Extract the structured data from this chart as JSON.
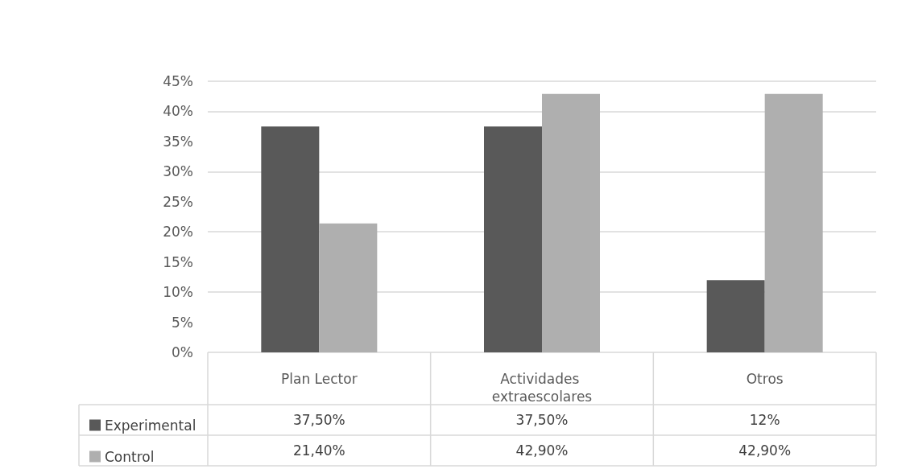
{
  "chart_data": {
    "type": "bar",
    "categories": [
      "Plan Lector",
      "Actividades extraescolares",
      "Otros"
    ],
    "series": [
      {
        "name": "Experimental",
        "color": "#595959",
        "values": [
          37.5,
          37.5,
          12
        ],
        "value_labels": [
          "37,50%",
          "37,50%",
          "12%"
        ]
      },
      {
        "name": "Control",
        "color": "#afafaf",
        "values": [
          21.4,
          42.9,
          42.9
        ],
        "value_labels": [
          "21,40%",
          "42,90%",
          "42,90%"
        ]
      }
    ],
    "ylim": [
      0,
      45
    ],
    "yticks": [
      {
        "value": 0,
        "label": "0%"
      },
      {
        "value": 5,
        "label": "5%"
      },
      {
        "value": 10,
        "label": "10%"
      },
      {
        "value": 15,
        "label": "15%"
      },
      {
        "value": 20,
        "label": "20%"
      },
      {
        "value": 25,
        "label": "25%"
      },
      {
        "value": 30,
        "label": "30%"
      },
      {
        "value": 35,
        "label": "35%"
      },
      {
        "value": 40,
        "label": "40%"
      },
      {
        "value": 45,
        "label": "45%"
      }
    ],
    "grid": true,
    "legend": "bottom left"
  }
}
